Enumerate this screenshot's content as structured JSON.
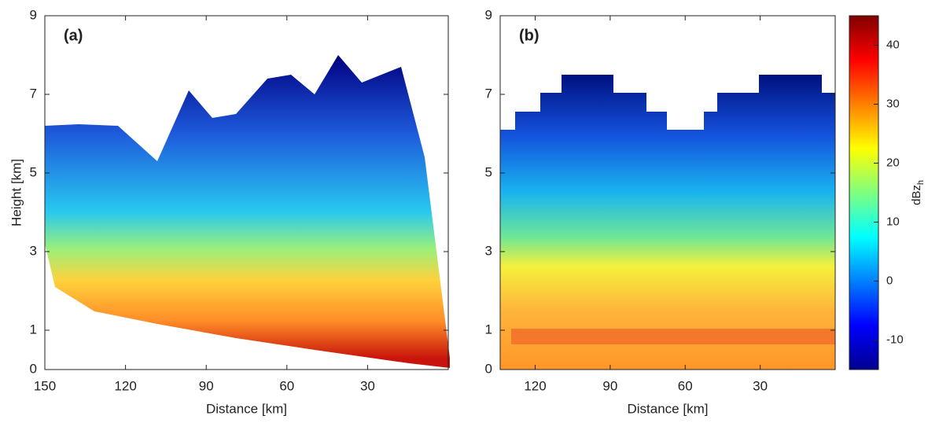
{
  "chart_data": [
    {
      "type": "heatmap",
      "panel_label": "(a)",
      "x_label": "Distance [km]",
      "y_label": "Height [km]",
      "xlim": [
        150,
        0
      ],
      "xticks": [
        150,
        120,
        90,
        60,
        30
      ],
      "ylim": [
        0,
        9
      ],
      "yticks": [
        0,
        1,
        3,
        5,
        7,
        9
      ]
    },
    {
      "type": "heatmap",
      "panel_label": "(b)",
      "x_label": "Distance [km]",
      "xlim": [
        134,
        0
      ],
      "xticks": [
        120,
        90,
        60,
        30
      ],
      "ylim": [
        0,
        9
      ],
      "yticks": [
        0,
        1,
        3,
        5,
        7,
        9
      ],
      "colorbar": {
        "label": "dBz",
        "label_sub": "h",
        "clim": [
          -15,
          45
        ],
        "ticks": [
          -10,
          0,
          10,
          20,
          30,
          40
        ]
      }
    }
  ]
}
